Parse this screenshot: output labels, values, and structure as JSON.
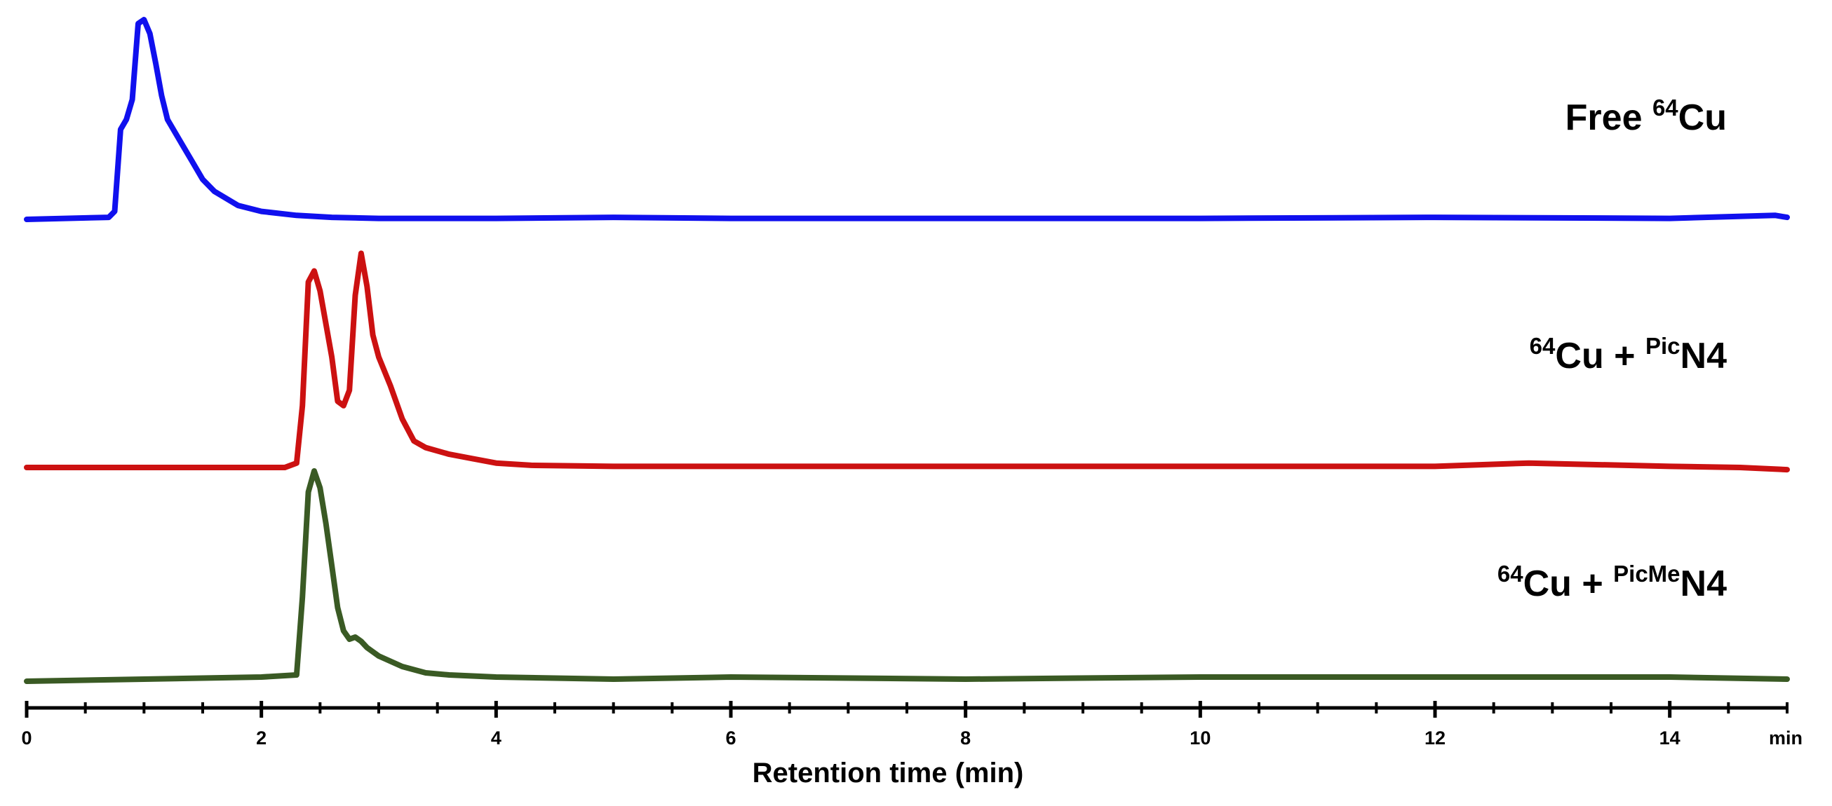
{
  "chart_data": {
    "type": "line",
    "title": "",
    "xlabel": "Retention time (min)",
    "x_unit_label": "min",
    "ylabel": "",
    "xlim": [
      0,
      15
    ],
    "x_ticks": [
      0,
      2,
      4,
      6,
      8,
      10,
      12,
      14
    ],
    "x_tick_labels": [
      "0",
      "2",
      "4",
      "6",
      "8",
      "10",
      "12",
      "14"
    ],
    "grid": false,
    "series": [
      {
        "name": "Free 64Cu",
        "label_parts": [
          {
            "text": "Free ",
            "sup": false
          },
          {
            "text": "64",
            "sup": true
          },
          {
            "text": "Cu",
            "sup": false
          }
        ],
        "color": "#1010ee",
        "x": [
          0,
          0.7,
          0.75,
          0.8,
          0.85,
          0.9,
          0.95,
          1.0,
          1.05,
          1.1,
          1.15,
          1.2,
          1.3,
          1.4,
          1.5,
          1.6,
          1.8,
          2.0,
          2.3,
          2.6,
          3.0,
          4.0,
          5.0,
          6.0,
          8.0,
          10.0,
          12.0,
          14.0,
          14.9,
          15.0
        ],
        "y": [
          0.0,
          0.01,
          0.04,
          0.45,
          0.5,
          0.6,
          0.98,
          1.0,
          0.93,
          0.78,
          0.62,
          0.5,
          0.4,
          0.3,
          0.2,
          0.14,
          0.07,
          0.04,
          0.02,
          0.01,
          0.005,
          0.005,
          0.01,
          0.005,
          0.005,
          0.005,
          0.01,
          0.005,
          0.02,
          0.01
        ]
      },
      {
        "name": "64Cu + PicN4",
        "label_parts": [
          {
            "text": "64",
            "sup": true
          },
          {
            "text": "Cu + ",
            "sup": false
          },
          {
            "text": "Pic",
            "sup": true
          },
          {
            "text": "N4",
            "sup": false
          }
        ],
        "color": "#cc1111",
        "x": [
          0,
          2.2,
          2.3,
          2.35,
          2.4,
          2.45,
          2.5,
          2.6,
          2.65,
          2.7,
          2.75,
          2.8,
          2.85,
          2.9,
          2.95,
          3.0,
          3.1,
          3.2,
          3.3,
          3.4,
          3.6,
          3.8,
          4.0,
          4.3,
          5.0,
          6.0,
          8.0,
          10.0,
          12.0,
          12.8,
          14.0,
          14.6,
          15.0
        ],
        "y": [
          0.0,
          0.0,
          0.02,
          0.28,
          0.84,
          0.89,
          0.8,
          0.5,
          0.3,
          0.28,
          0.35,
          0.78,
          0.97,
          0.82,
          0.6,
          0.5,
          0.37,
          0.22,
          0.12,
          0.09,
          0.06,
          0.04,
          0.02,
          0.01,
          0.005,
          0.005,
          0.005,
          0.005,
          0.005,
          0.02,
          0.005,
          0.0,
          -0.01
        ]
      },
      {
        "name": "64Cu + PicMeN4",
        "label_parts": [
          {
            "text": "64",
            "sup": true
          },
          {
            "text": "Cu + ",
            "sup": false
          },
          {
            "text": "PicMe",
            "sup": true
          },
          {
            "text": "N4",
            "sup": false
          }
        ],
        "color": "#3a5a24",
        "x": [
          0,
          1.0,
          2.0,
          2.3,
          2.35,
          2.4,
          2.45,
          2.5,
          2.55,
          2.6,
          2.65,
          2.7,
          2.75,
          2.8,
          2.85,
          2.9,
          3.0,
          3.2,
          3.4,
          3.6,
          4.0,
          5.0,
          6.0,
          8.0,
          10.0,
          12.0,
          14.0,
          15.0
        ],
        "y": [
          0.0,
          0.01,
          0.02,
          0.03,
          0.4,
          0.9,
          1.0,
          0.92,
          0.75,
          0.55,
          0.35,
          0.24,
          0.2,
          0.21,
          0.19,
          0.16,
          0.12,
          0.07,
          0.04,
          0.03,
          0.02,
          0.01,
          0.02,
          0.01,
          0.02,
          0.02,
          0.02,
          0.01
        ]
      }
    ]
  }
}
